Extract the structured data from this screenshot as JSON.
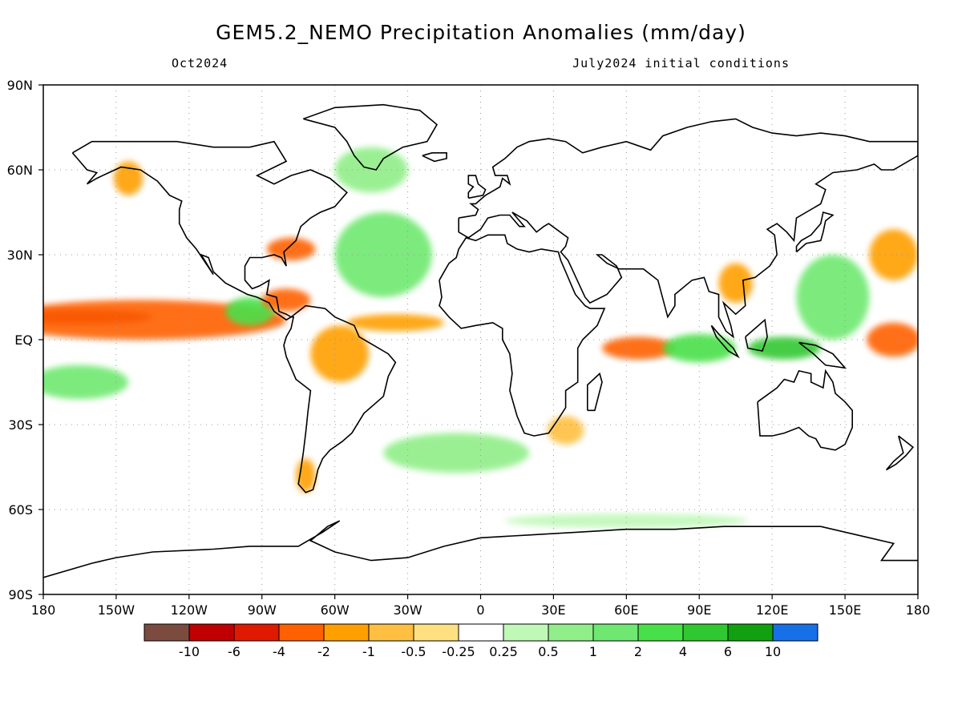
{
  "header": {
    "title": "GEM5.2_NEMO Precipitation Anomalies (mm/day)",
    "valid_month": "Oct2024",
    "init_conditions": "July2024 initial conditions"
  },
  "axes": {
    "lat_labels": [
      "90N",
      "60N",
      "30N",
      "EQ",
      "30S",
      "60S",
      "90S"
    ],
    "lon_labels": [
      "180",
      "150W",
      "120W",
      "90W",
      "60W",
      "30W",
      "0",
      "30E",
      "60E",
      "90E",
      "120E",
      "150E",
      "180"
    ],
    "lat_range": [
      -90,
      90
    ],
    "lon_range": [
      -180,
      180
    ],
    "grid": true
  },
  "colorbar": {
    "labels": [
      "-10",
      "-6",
      "-4",
      "-2",
      "-1",
      "-0.5",
      "-0.25",
      "0.25",
      "0.5",
      "1",
      "2",
      "4",
      "6",
      "10"
    ],
    "colors": [
      "#7b4b40",
      "#c00000",
      "#e01a00",
      "#ff6000",
      "#ff9f00",
      "#ffbf40",
      "#ffe080",
      "#ffffff",
      "#c0f8b8",
      "#90ee88",
      "#6ee870",
      "#48e048",
      "#30c830",
      "#10a010",
      "#1870e8"
    ]
  },
  "anomaly_regions": [
    {
      "name": "central-pacific-dry-band",
      "lon": -165,
      "lat": 8,
      "w": 60,
      "h": 5,
      "color": "#c00000"
    },
    {
      "name": "pacific-itcz-dry",
      "lon": -140,
      "lat": 7,
      "w": 120,
      "h": 14,
      "color": "#ff6000"
    },
    {
      "name": "east-pacific-wet",
      "lon": -95,
      "lat": 10,
      "w": 20,
      "h": 10,
      "color": "#48e048"
    },
    {
      "name": "central-america-dry",
      "lon": -80,
      "lat": 14,
      "w": 20,
      "h": 8,
      "color": "#ff6000"
    },
    {
      "name": "amazon-dry",
      "lon": -58,
      "lat": -5,
      "w": 24,
      "h": 20,
      "color": "#ff9f00"
    },
    {
      "name": "atlantic-itcz-dry",
      "lon": -35,
      "lat": 6,
      "w": 40,
      "h": 6,
      "color": "#ff9f00"
    },
    {
      "name": "north-atlantic-wet",
      "lon": -40,
      "lat": 30,
      "w": 40,
      "h": 30,
      "color": "#6ee870"
    },
    {
      "name": "gulf-coast-dry",
      "lon": -78,
      "lat": 32,
      "w": 20,
      "h": 8,
      "color": "#ff6000"
    },
    {
      "name": "alaska-dry",
      "lon": -145,
      "lat": 57,
      "w": 12,
      "h": 12,
      "color": "#ff9f00"
    },
    {
      "name": "arctic-atlantic-wet",
      "lon": -45,
      "lat": 60,
      "w": 30,
      "h": 16,
      "color": "#90ee88"
    },
    {
      "name": "indian-ocean-dry",
      "lon": 65,
      "lat": -3,
      "w": 30,
      "h": 8,
      "color": "#ff6000"
    },
    {
      "name": "indian-ocean-wet",
      "lon": 90,
      "lat": -3,
      "w": 30,
      "h": 10,
      "color": "#48e048"
    },
    {
      "name": "south-china-dry",
      "lon": 105,
      "lat": 20,
      "w": 14,
      "h": 14,
      "color": "#ff9f00"
    },
    {
      "name": "west-pacific-wet",
      "lon": 145,
      "lat": 15,
      "w": 30,
      "h": 30,
      "color": "#6ee870"
    },
    {
      "name": "maritime-continent-wet",
      "lon": 125,
      "lat": -3,
      "w": 30,
      "h": 8,
      "color": "#30c830"
    },
    {
      "name": "dateline-dry",
      "lon": 170,
      "lat": 0,
      "w": 22,
      "h": 12,
      "color": "#ff6000"
    },
    {
      "name": "subtropical-pacific-dry",
      "lon": 170,
      "lat": 30,
      "w": 20,
      "h": 18,
      "color": "#ff9f00"
    },
    {
      "name": "south-pacific-wet",
      "lon": -165,
      "lat": -15,
      "w": 40,
      "h": 12,
      "color": "#6ee870"
    },
    {
      "name": "south-africa-dry",
      "lon": 35,
      "lat": -32,
      "w": 15,
      "h": 10,
      "color": "#ffbf40"
    },
    {
      "name": "southern-ocean-wet",
      "lon": -10,
      "lat": -40,
      "w": 60,
      "h": 14,
      "color": "#90ee88"
    },
    {
      "name": "patagonia-dry",
      "lon": -72,
      "lat": -48,
      "w": 8,
      "h": 12,
      "color": "#ff9f00"
    },
    {
      "name": "antarctic-coast-wet",
      "lon": 60,
      "lat": -64,
      "w": 100,
      "h": 5,
      "color": "#c0f8b8"
    }
  ]
}
